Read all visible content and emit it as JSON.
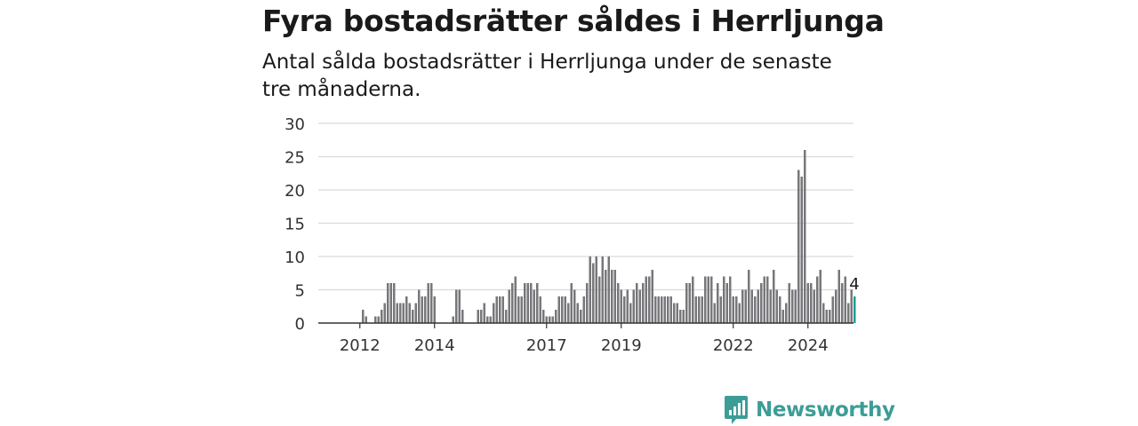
{
  "title": "Fyra bostadsrätter såldes i Herrljunga",
  "subtitle": "Antal sålda bostadsrätter i Herrljunga under de senaste tre månaderna.",
  "brand": {
    "name": "Newsworthy",
    "icon": "newsworthy-logo-icon",
    "color": "#3c9d97"
  },
  "chart_data": {
    "type": "bar",
    "ylim": [
      0,
      30
    ],
    "y_ticks": [
      "0",
      "5",
      "10",
      "15",
      "20",
      "25",
      "30"
    ],
    "x_ticks": [
      {
        "label": "2012",
        "index": 7
      },
      {
        "label": "2014",
        "index": 31
      },
      {
        "label": "2017",
        "index": 67
      },
      {
        "label": "2019",
        "index": 91
      },
      {
        "label": "2022",
        "index": 127
      },
      {
        "label": "2024",
        "index": 151
      }
    ],
    "grid": true,
    "bar_color": "#77777b",
    "highlight_color": "#1e9b93",
    "last_label": "4",
    "values": [
      0,
      0,
      0,
      0,
      0,
      0,
      0,
      0,
      2,
      1,
      0,
      0,
      1,
      1,
      2,
      3,
      6,
      6,
      6,
      3,
      3,
      3,
      4,
      3,
      2,
      3,
      5,
      4,
      4,
      6,
      6,
      4,
      0,
      0,
      0,
      0,
      0,
      1,
      5,
      5,
      2,
      0,
      0,
      0,
      0,
      2,
      2,
      3,
      1,
      1,
      3,
      4,
      4,
      4,
      2,
      5,
      6,
      7,
      4,
      4,
      6,
      6,
      6,
      5,
      6,
      4,
      2,
      1,
      1,
      1,
      2,
      4,
      4,
      4,
      3,
      6,
      5,
      3,
      2,
      4,
      6,
      10,
      9,
      10,
      7,
      10,
      8,
      10,
      8,
      8,
      6,
      5,
      4,
      5,
      3,
      5,
      6,
      5,
      6,
      7,
      7,
      8,
      4,
      4,
      4,
      4,
      4,
      4,
      3,
      3,
      2,
      2,
      6,
      6,
      7,
      4,
      4,
      4,
      7,
      7,
      7,
      3,
      6,
      4,
      7,
      6,
      7,
      4,
      4,
      3,
      5,
      5,
      8,
      5,
      4,
      5,
      6,
      7,
      7,
      5,
      8,
      5,
      4,
      2,
      3,
      6,
      5,
      5,
      23,
      22,
      26,
      6,
      6,
      5,
      7,
      8,
      3,
      2,
      2,
      4,
      5,
      8,
      6,
      7,
      3,
      5,
      4
    ]
  }
}
